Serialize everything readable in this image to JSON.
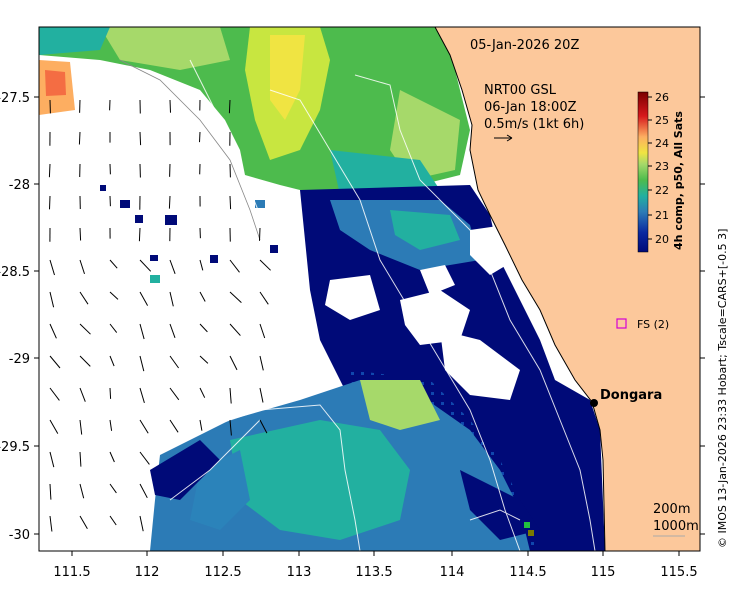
{
  "map": {
    "date_label": "05-Jan-2026 20Z",
    "current_info": {
      "model_line": "NRT00 GSL",
      "time_line": "06-Jan 18:00Z",
      "scale_line": "0.5m/s (1kt 6h)"
    },
    "colorbar": {
      "title": "4h comp, p50, All Sats",
      "ticks": [
        "26",
        "25",
        "24",
        "23",
        "22",
        "21",
        "20"
      ],
      "colors": [
        "#7a0000",
        "#d7191c",
        "#f46d43",
        "#fdae61",
        "#f0e442",
        "#a6d96a",
        "#4dbb4d",
        "#22b0a0",
        "#2b83ba",
        "#2c7bb6",
        "#0a28a0",
        "#000a78"
      ]
    },
    "x_ticks": [
      "111.5",
      "112",
      "112.5",
      "113",
      "113.5",
      "114",
      "114.5",
      "115",
      "115.5"
    ],
    "y_ticks": [
      "-27.5",
      "-28",
      "-28.5",
      "-29",
      "-29.5",
      "-30"
    ],
    "places": {
      "dongara": "Dongara",
      "fs_label": "FS (2)"
    },
    "depth_legend": {
      "line1": "200m",
      "line2": "1000m"
    },
    "credit": "© IMOS 13-Jan-2026 23:33 Hobart; Tscale=CARS+[-0.5 3]",
    "colors": {
      "land": "#fcc89b",
      "fs_marker": "#d400d4",
      "deep_blue": "#000a78"
    }
  }
}
